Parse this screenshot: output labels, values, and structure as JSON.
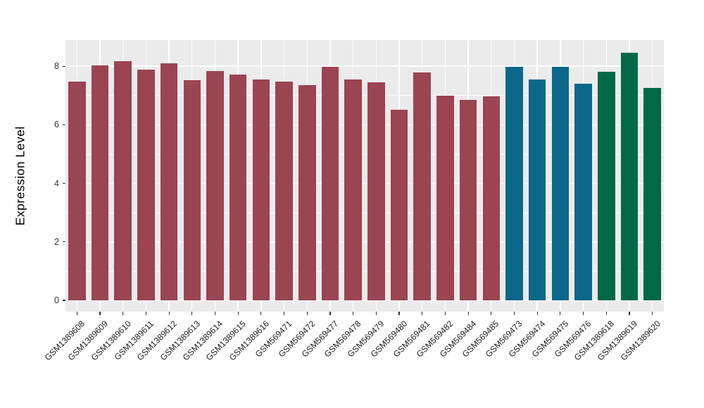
{
  "colors": {
    "figure_background": "#FFFFFF",
    "panel_background": "#EBEBEB",
    "gridline": "#FFFFFF",
    "tick_mark": "#333333",
    "axis_text": "#333333",
    "x_axis_text": "#1A1A1A",
    "axis_title": "#000000"
  },
  "chart_data": {
    "type": "bar",
    "title": "",
    "xlabel": "",
    "ylabel": "Expression Level",
    "ylim": [
      -0.39,
      8.89
    ],
    "yticks": [
      0,
      2,
      4,
      6,
      8
    ],
    "ytick_labels": [
      "0",
      "2",
      "4",
      "6",
      "8"
    ],
    "yminor_ticks": [
      1,
      3,
      5,
      7
    ],
    "grid": "white major and minor horizontal lines, white vertical line at each category, on grey panel",
    "legend_position": "none",
    "bar_width_fraction": 0.75,
    "x_label_rotation_deg": 45,
    "categories": [
      "GSM1389608",
      "GSM1389609",
      "GSM1389610",
      "GSM1389611",
      "GSM1389612",
      "GSM1389613",
      "GSM1389614",
      "GSM1389615",
      "GSM1389616",
      "GSM569471",
      "GSM569472",
      "GSM569477",
      "GSM569478",
      "GSM569479",
      "GSM569480",
      "GSM569481",
      "GSM569482",
      "GSM569484",
      "GSM569485",
      "GSM569473",
      "GSM569474",
      "GSM569475",
      "GSM569476",
      "GSM1389618",
      "GSM1389619",
      "GSM1389620"
    ],
    "values": [
      7.47,
      8.02,
      8.18,
      7.88,
      8.11,
      7.53,
      7.84,
      7.72,
      7.56,
      7.48,
      7.36,
      7.99,
      7.54,
      7.44,
      6.51,
      7.79,
      6.99,
      6.84,
      6.98,
      7.99,
      7.54,
      7.97,
      7.41,
      7.82,
      8.45,
      7.27
    ],
    "bar_color_index": [
      0,
      0,
      0,
      0,
      0,
      0,
      0,
      0,
      0,
      0,
      0,
      0,
      0,
      0,
      0,
      0,
      0,
      0,
      0,
      1,
      1,
      1,
      1,
      2,
      2,
      2
    ],
    "palette": [
      "#9B4452",
      "#0C688A",
      "#026948"
    ]
  }
}
